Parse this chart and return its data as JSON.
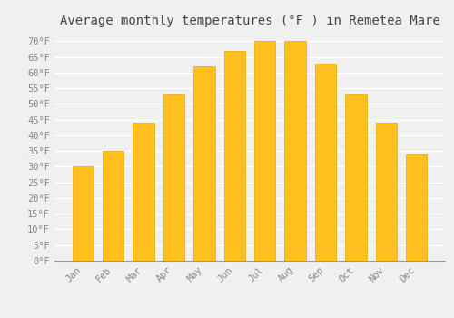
{
  "title": "Average monthly temperatures (°F ) in Remetea Mare",
  "months": [
    "Jan",
    "Feb",
    "Mar",
    "Apr",
    "May",
    "Jun",
    "Jul",
    "Aug",
    "Sep",
    "Oct",
    "Nov",
    "Dec"
  ],
  "values": [
    30,
    35,
    44,
    53,
    62,
    67,
    70,
    70,
    63,
    53,
    44,
    34
  ],
  "bar_color": "#FFC020",
  "bar_edge_color": "#E8A800",
  "background_color": "#F0F0F0",
  "grid_color": "#FFFFFF",
  "title_color": "#444444",
  "label_color": "#888888",
  "ylim": [
    0,
    73
  ],
  "yticks": [
    0,
    5,
    10,
    15,
    20,
    25,
    30,
    35,
    40,
    45,
    50,
    55,
    60,
    65,
    70
  ],
  "ytick_labels": [
    "0°F",
    "5°F",
    "10°F",
    "15°F",
    "20°F",
    "25°F",
    "30°F",
    "35°F",
    "40°F",
    "45°F",
    "50°F",
    "55°F",
    "60°F",
    "65°F",
    "70°F"
  ],
  "title_fontsize": 10,
  "tick_fontsize": 7.5,
  "font_family": "monospace",
  "bar_width": 0.7
}
